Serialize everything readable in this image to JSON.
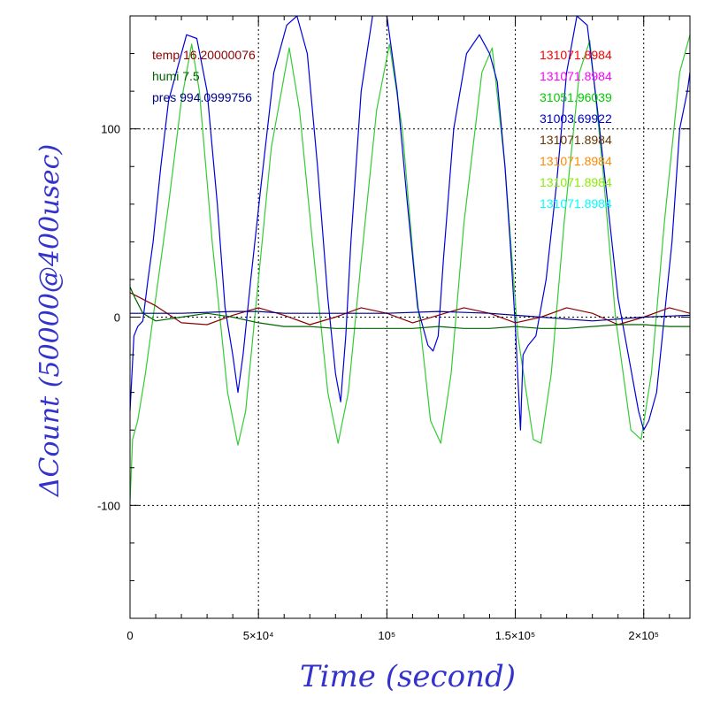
{
  "chart_data": {
    "type": "line",
    "title": "",
    "xlabel": "Time (second)",
    "ylabel": "ΔCount (50000@400usec)",
    "xlim": [
      0,
      218000
    ],
    "ylim": [
      -160,
      160
    ],
    "grid": true,
    "x_ticks": [
      {
        "value": 0,
        "label": "0"
      },
      {
        "value": 50000,
        "label": "5×10⁴"
      },
      {
        "value": 100000,
        "label": "10⁵"
      },
      {
        "value": 150000,
        "label": "1.5×10⁵"
      },
      {
        "value": 200000,
        "label": "2×10⁵"
      }
    ],
    "y_ticks": [
      {
        "value": -100,
        "label": "-100"
      },
      {
        "value": 0,
        "label": "0"
      },
      {
        "value": 100,
        "label": "100"
      }
    ],
    "legend_left": [
      {
        "text": "temp 16.20000076",
        "color": "#8b0000"
      },
      {
        "text": "humi 7.5",
        "color": "#006400"
      },
      {
        "text": "pres 994.0999756",
        "color": "#00008b"
      }
    ],
    "legend_right": [
      {
        "text": "131071.8984",
        "color": "#ff0000"
      },
      {
        "text": "131071.8984",
        "color": "#ff00ff"
      },
      {
        "text": "31051.96039",
        "color": "#00cc00"
      },
      {
        "text": "31003.69922",
        "color": "#0000cc"
      },
      {
        "text": "131071.8984",
        "color": "#663300"
      },
      {
        "text": "131071.8984",
        "color": "#ff8800"
      },
      {
        "text": "131071.8984",
        "color": "#88ee00"
      },
      {
        "text": "131071.8984",
        "color": "#00ffff"
      }
    ],
    "series": [
      {
        "color": "#33cc33",
        "x": [
          0,
          1000,
          3000,
          6000,
          10000,
          15000,
          20000,
          24000,
          27000,
          32000,
          38000,
          42000,
          45000,
          50000,
          55000,
          62000,
          66000,
          71000,
          77000,
          81000,
          85000,
          90000,
          96000,
          101000,
          106000,
          111000,
          117000,
          121000,
          125000,
          130000,
          137000,
          141000,
          146000,
          151000,
          157000,
          160000,
          164000,
          169000,
          175000,
          179000,
          184000,
          189000,
          195000,
          199000,
          203000,
          208000,
          214000,
          218000
        ],
        "y": [
          -98,
          -65,
          -55,
          -30,
          10,
          60,
          115,
          145,
          120,
          40,
          -40,
          -68,
          -50,
          20,
          90,
          143,
          110,
          40,
          -40,
          -67,
          -40,
          30,
          110,
          145,
          100,
          20,
          -55,
          -67,
          -30,
          50,
          130,
          143,
          80,
          -10,
          -65,
          -67,
          -30,
          50,
          130,
          147,
          80,
          0,
          -60,
          -65,
          -30,
          50,
          130,
          150
        ]
      },
      {
        "color": "#0000dd",
        "x": [
          0,
          1500,
          3000,
          5000,
          7000,
          9000,
          12000,
          15000,
          18000,
          22000,
          26000,
          30000,
          34000,
          37000,
          40000,
          42000,
          44000,
          47000,
          51000,
          56000,
          61000,
          65000,
          69000,
          73000,
          77000,
          80000,
          82000,
          84000,
          86000,
          90000,
          95000,
          100000,
          104000,
          108000,
          112000,
          116000,
          118000,
          120000,
          122000,
          126000,
          131000,
          136000,
          140000,
          143000,
          146000,
          148000,
          150000,
          152000,
          153000,
          155000,
          158000,
          162000,
          166000,
          170000,
          174000,
          178000,
          182000,
          186000,
          190000,
          194000,
          198000,
          200000,
          202000,
          205000,
          208000,
          211000,
          214000,
          217000,
          218000
        ],
        "y": [
          -50,
          -10,
          -5,
          -2,
          20,
          40,
          80,
          115,
          130,
          150,
          148,
          120,
          60,
          5,
          -20,
          -40,
          -20,
          20,
          70,
          130,
          155,
          160,
          140,
          80,
          10,
          -30,
          -45,
          -10,
          40,
          120,
          165,
          160,
          120,
          60,
          5,
          -15,
          -18,
          -10,
          30,
          100,
          140,
          150,
          140,
          125,
          80,
          40,
          -5,
          -60,
          -20,
          -15,
          -10,
          20,
          70,
          130,
          160,
          155,
          110,
          60,
          10,
          -20,
          -50,
          -60,
          -55,
          -40,
          0,
          40,
          100,
          120,
          130
        ]
      },
      {
        "color": "#8b0000",
        "x": [
          0,
          10000,
          20000,
          30000,
          40000,
          50000,
          60000,
          70000,
          80000,
          90000,
          100000,
          110000,
          120000,
          130000,
          140000,
          150000,
          160000,
          170000,
          180000,
          190000,
          200000,
          210000,
          218000
        ],
        "y": [
          13,
          6,
          -3,
          -4,
          1,
          5,
          1,
          -4,
          0,
          5,
          2,
          -3,
          1,
          5,
          2,
          -3,
          0,
          5,
          2,
          -4,
          0,
          5,
          2
        ]
      },
      {
        "color": "#006400",
        "x": [
          0,
          2000,
          5000,
          10000,
          20000,
          30000,
          40000,
          50000,
          60000,
          70000,
          80000,
          90000,
          100000,
          110000,
          120000,
          130000,
          140000,
          150000,
          160000,
          170000,
          180000,
          190000,
          200000,
          210000,
          218000
        ],
        "y": [
          16,
          10,
          2,
          -2,
          0,
          2,
          0,
          -3,
          -5,
          -5,
          -6,
          -6,
          -6,
          -6,
          -5,
          -6,
          -6,
          -5,
          -6,
          -6,
          -5,
          -4,
          -4,
          -5,
          -5
        ]
      },
      {
        "color": "#00008b",
        "x": [
          0,
          20000,
          40000,
          50000,
          60000,
          80000,
          100000,
          120000,
          140000,
          150000,
          160000,
          180000,
          200000,
          218000
        ],
        "y": [
          2,
          2,
          3,
          3,
          2,
          2,
          2,
          3,
          2,
          1,
          0,
          -2,
          0,
          1
        ]
      }
    ]
  }
}
